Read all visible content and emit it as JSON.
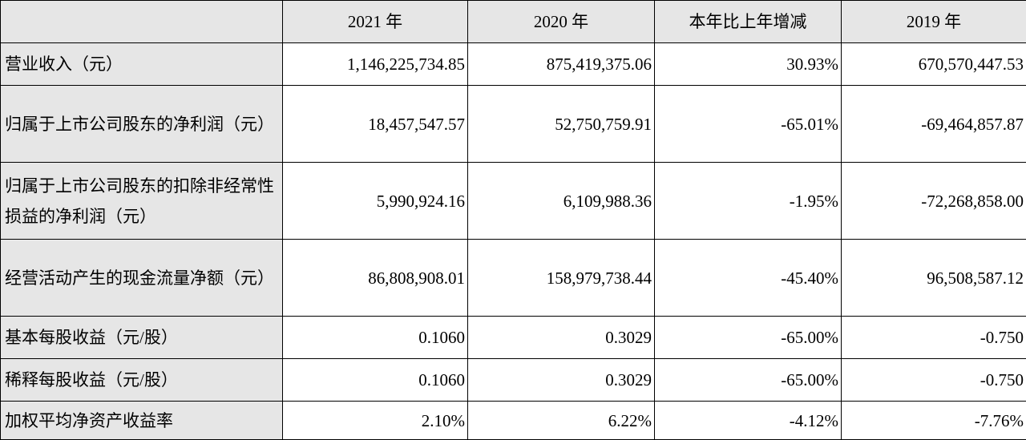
{
  "table": {
    "headers": [
      "",
      "2021 年",
      "2020 年",
      "本年比上年增减",
      "2019 年"
    ],
    "rows": [
      {
        "label": "营业收入（元）",
        "values": [
          "1,146,225,734.85",
          "875,419,375.06",
          "30.93%",
          "670,570,447.53"
        ]
      },
      {
        "label": "归属于上市公司股东的净利润（元）",
        "values": [
          "18,457,547.57",
          "52,750,759.91",
          "-65.01%",
          "-69,464,857.87"
        ]
      },
      {
        "label": "归属于上市公司股东的扣除非经常性损益的净利润（元）",
        "values": [
          "5,990,924.16",
          "6,109,988.36",
          "-1.95%",
          "-72,268,858.00"
        ]
      },
      {
        "label": "经营活动产生的现金流量净额（元）",
        "values": [
          "86,808,908.01",
          "158,979,738.44",
          "-45.40%",
          "96,508,587.12"
        ]
      },
      {
        "label": "基本每股收益（元/股）",
        "values": [
          "0.1060",
          "0.3029",
          "-65.00%",
          "-0.750"
        ]
      },
      {
        "label": "稀释每股收益（元/股）",
        "values": [
          "0.1060",
          "0.3029",
          "-65.00%",
          "-0.750"
        ]
      },
      {
        "label": "加权平均净资产收益率",
        "values": [
          "2.10%",
          "6.22%",
          "-4.12%",
          "-7.76%"
        ]
      }
    ]
  }
}
